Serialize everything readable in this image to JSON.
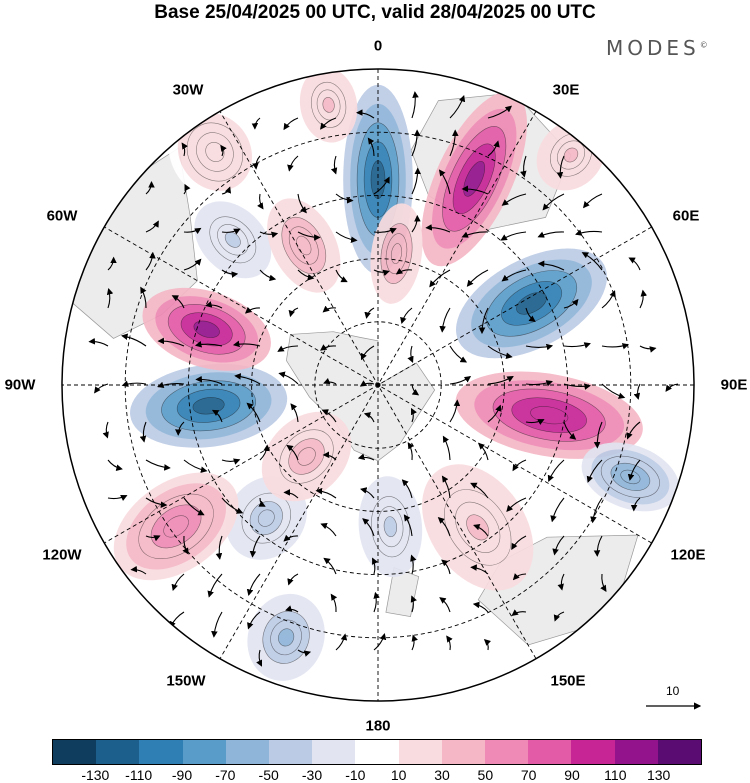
{
  "title": "Base 25/04/2025 00 UTC, valid 28/04/2025 00 UTC",
  "brand": "MODES",
  "brand_mark": "©",
  "longitude_labels": {
    "lon_0": "0",
    "lon_30e": "30E",
    "lon_60e": "60E",
    "lon_90e": "90E",
    "lon_120e": "120E",
    "lon_150e": "150E",
    "lon_180": "180",
    "lon_150w": "150W",
    "lon_120w": "120W",
    "lon_90w": "90W",
    "lon_60w": "60W",
    "lon_30w": "30W"
  },
  "reference_vector": {
    "value": "10"
  },
  "colorbar": {
    "colors": [
      "#0f3d5e",
      "#1d5f8c",
      "#2f7fb5",
      "#5a9cc9",
      "#8fb5d9",
      "#bccbe5",
      "#e2e4f1",
      "#ffffff",
      "#f9dcdf",
      "#f5b7c5",
      "#ee8ab5",
      "#e35aa7",
      "#c72596",
      "#93138c",
      "#5a0c73"
    ],
    "labels": [
      "-130",
      "-110",
      "-90",
      "-70",
      "-50",
      "-30",
      "-10",
      "10",
      "30",
      "50",
      "70",
      "90",
      "110",
      "130"
    ]
  },
  "anomaly_centers": [
    {
      "lon": 0,
      "dist": 0.65,
      "rx": 0.11,
      "ry": 0.3,
      "value": -110
    },
    {
      "lon": 25,
      "dist": 0.72,
      "rx": 0.12,
      "ry": 0.3,
      "value": 125
    },
    {
      "lon": 62,
      "dist": 0.55,
      "rx": 0.14,
      "ry": 0.26,
      "value": -115
    },
    {
      "lon": 100,
      "dist": 0.55,
      "rx": 0.13,
      "ry": 0.3,
      "value": 110
    },
    {
      "lon": 110,
      "dist": 0.85,
      "rx": 0.1,
      "ry": 0.16,
      "value": -60
    },
    {
      "lon": 145,
      "dist": 0.55,
      "rx": 0.15,
      "ry": 0.22,
      "value": 35
    },
    {
      "lon": 175,
      "dist": 0.45,
      "rx": 0.1,
      "ry": 0.16,
      "value": -30
    },
    {
      "lon": -160,
      "dist": 0.85,
      "rx": 0.12,
      "ry": 0.14,
      "value": -55
    },
    {
      "lon": -140,
      "dist": 0.55,
      "rx": 0.12,
      "ry": 0.14,
      "value": -40
    },
    {
      "lon": -125,
      "dist": 0.78,
      "rx": 0.14,
      "ry": 0.22,
      "value": 65
    },
    {
      "lon": -135,
      "dist": 0.32,
      "rx": 0.12,
      "ry": 0.16,
      "value": 40
    },
    {
      "lon": -97,
      "dist": 0.54,
      "rx": 0.13,
      "ry": 0.25,
      "value": -115
    },
    {
      "lon": -72,
      "dist": 0.57,
      "rx": 0.12,
      "ry": 0.21,
      "value": 115
    },
    {
      "lon": -45,
      "dist": 0.65,
      "rx": 0.1,
      "ry": 0.14,
      "value": -35
    },
    {
      "lon": -28,
      "dist": 0.5,
      "rx": 0.1,
      "ry": 0.16,
      "value": 45
    },
    {
      "lon": -10,
      "dist": 0.9,
      "rx": 0.09,
      "ry": 0.12,
      "value": 35
    },
    {
      "lon": 8,
      "dist": 0.42,
      "rx": 0.08,
      "ry": 0.16,
      "value": 45
    },
    {
      "lon": 40,
      "dist": 0.95,
      "rx": 0.1,
      "ry": 0.12,
      "value": 35
    },
    {
      "lon": -35,
      "dist": 0.9,
      "rx": 0.14,
      "ry": 0.16,
      "value": 25
    }
  ]
}
